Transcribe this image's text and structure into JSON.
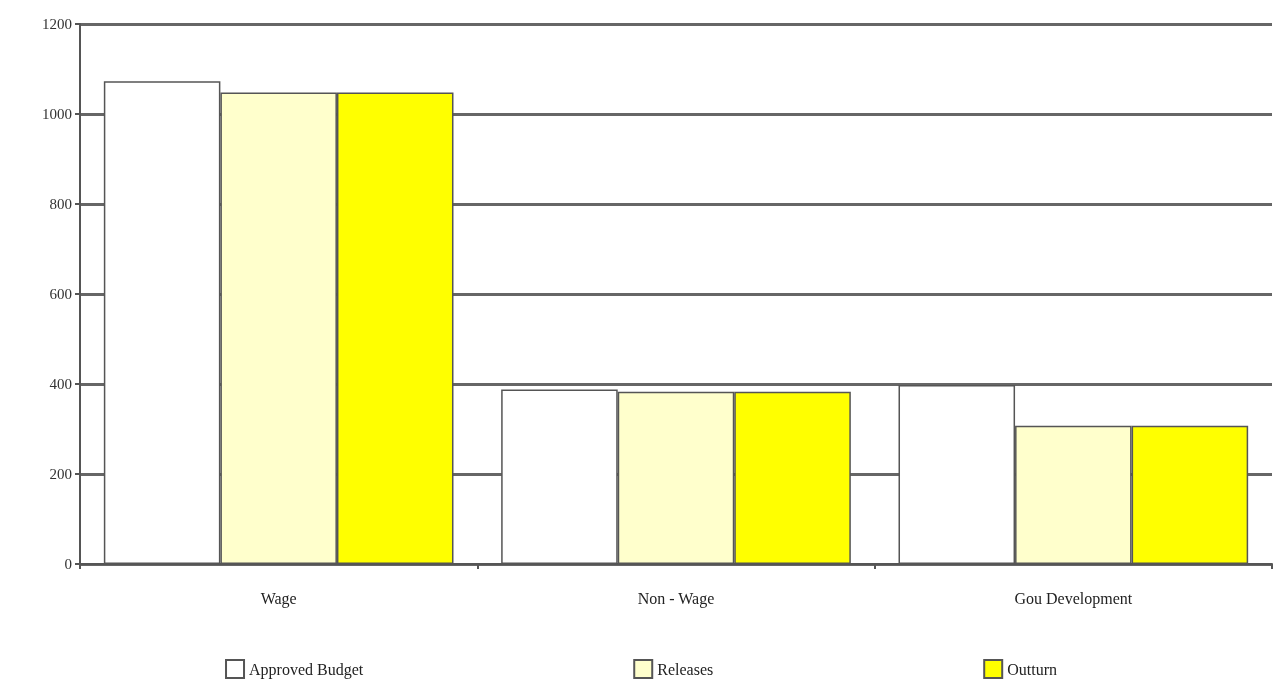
{
  "chart_data": {
    "type": "bar",
    "categories": [
      "Wage",
      "Non - Wage",
      "Gou Development"
    ],
    "series": [
      {
        "name": "Approved Budget",
        "color": "#ffffff",
        "values": [
          1073,
          388,
          398
        ]
      },
      {
        "name": "Releases",
        "color": "#ffffcc",
        "values": [
          1048,
          383,
          307
        ]
      },
      {
        "name": "Outturn",
        "color": "#ffff00",
        "values": [
          1048,
          383,
          307
        ]
      }
    ],
    "ylim": [
      0,
      1200
    ],
    "yticks": [
      0,
      200,
      400,
      600,
      800,
      1000,
      1200
    ],
    "grid": "y",
    "legend": "bottom"
  }
}
